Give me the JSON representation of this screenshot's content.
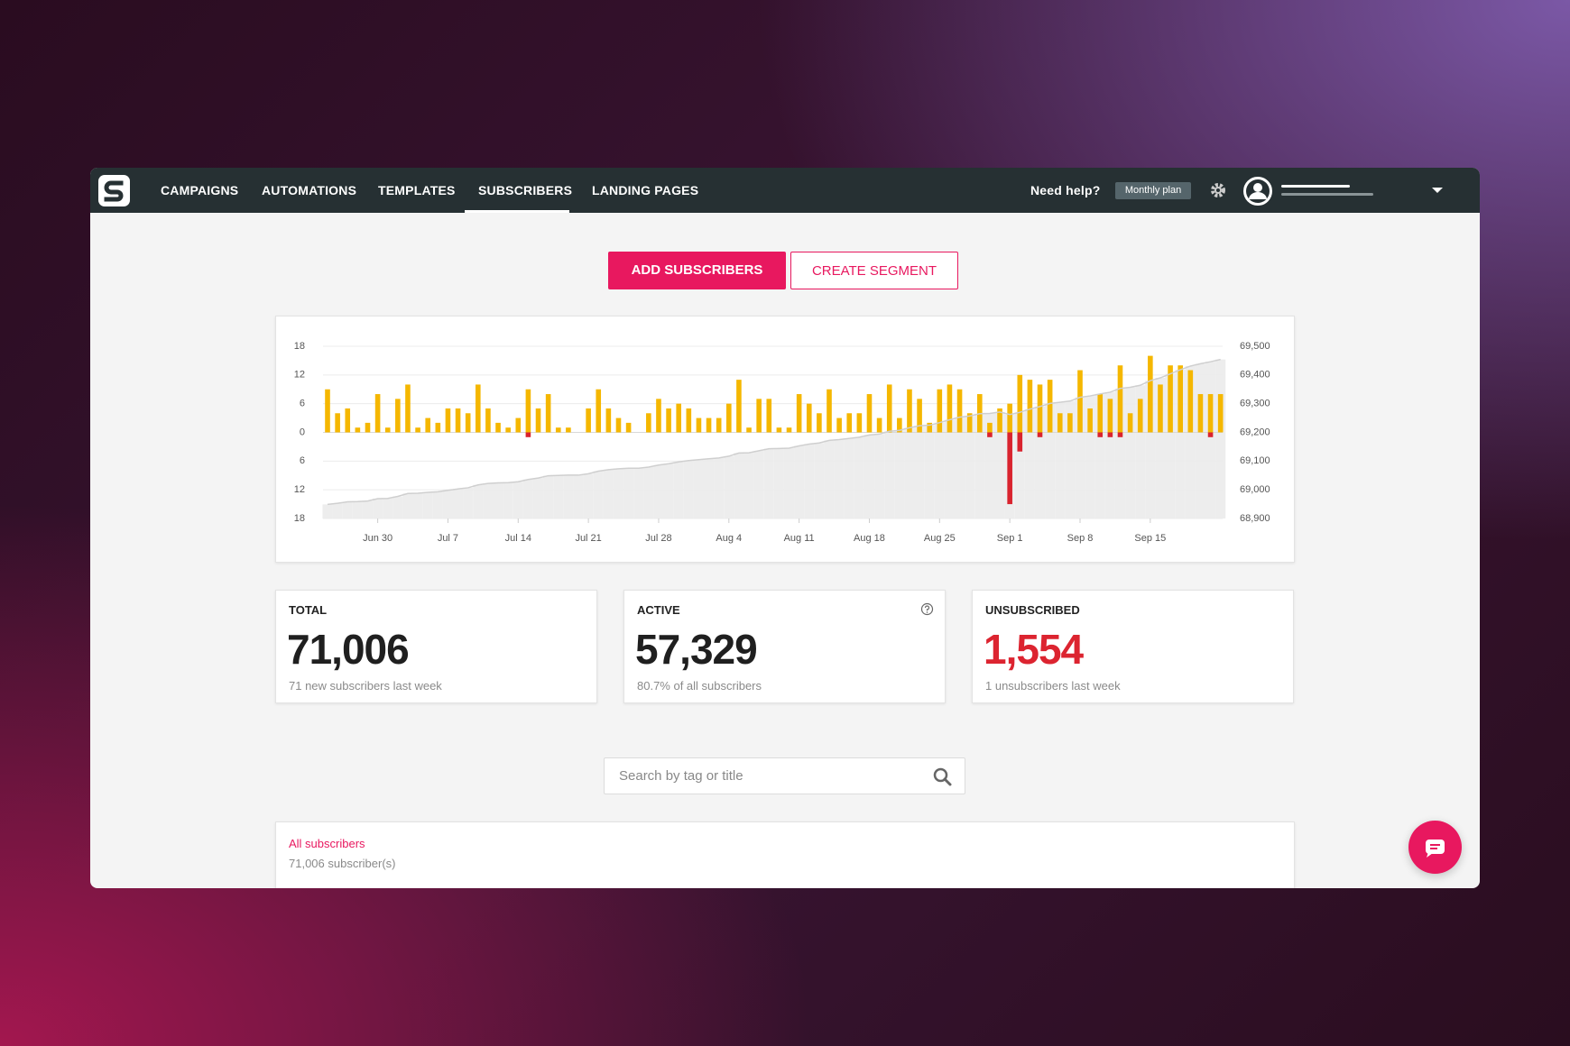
{
  "nav": {
    "items": [
      "CAMPAIGNS",
      "AUTOMATIONS",
      "TEMPLATES",
      "SUBSCRIBERS",
      "LANDING PAGES"
    ],
    "help": "Need help?",
    "plan": "Monthly plan"
  },
  "actions": {
    "add": "ADD SUBSCRIBERS",
    "segment": "CREATE SEGMENT"
  },
  "chart_data": {
    "type": "bar",
    "categories": [
      null,
      null,
      null,
      null,
      null,
      "Jun 30",
      null,
      null,
      null,
      null,
      null,
      null,
      "Jul 7",
      null,
      null,
      null,
      null,
      null,
      null,
      "Jul 14",
      null,
      null,
      null,
      null,
      null,
      null,
      "Jul 21",
      null,
      null,
      null,
      null,
      null,
      null,
      "Jul 28",
      null,
      null,
      null,
      null,
      null,
      null,
      "Aug 4",
      null,
      null,
      null,
      null,
      null,
      null,
      "Aug 11",
      null,
      null,
      null,
      null,
      null,
      null,
      "Aug 18",
      null,
      null,
      null,
      null,
      null,
      null,
      "Aug 25",
      null,
      null,
      null,
      null,
      null,
      null,
      "Sep 1",
      null,
      null,
      null,
      null,
      null,
      null,
      "Sep 8",
      null,
      null,
      null,
      null,
      null,
      null,
      "Sep 15",
      null,
      null,
      null,
      null,
      null,
      null,
      null
    ],
    "series": [
      {
        "color": "#f5b700",
        "values": [
          9,
          4,
          5,
          1,
          2,
          8,
          1,
          7,
          10,
          1,
          3,
          2,
          5,
          5,
          4,
          10,
          5,
          2,
          1,
          3,
          9,
          5,
          8,
          1,
          1,
          0,
          5,
          9,
          5,
          3,
          2,
          0,
          4,
          7,
          5,
          6,
          5,
          3,
          3,
          3,
          6,
          11,
          1,
          7,
          7,
          1,
          1,
          8,
          6,
          4,
          9,
          3,
          4,
          4,
          8,
          3,
          10,
          3,
          9,
          7,
          2,
          9,
          10,
          9,
          4,
          8,
          2,
          5,
          6,
          12,
          11,
          10,
          11,
          4,
          4,
          13,
          5,
          8,
          7,
          14,
          4,
          7,
          16,
          10,
          14,
          14,
          13,
          8,
          8,
          8
        ]
      },
      {
        "color": "#d9232e",
        "values": [
          0,
          0,
          0,
          0,
          0,
          0,
          0,
          0,
          0,
          0,
          0,
          0,
          0,
          0,
          0,
          0,
          0,
          0,
          0,
          0,
          -1,
          0,
          0,
          0,
          0,
          0,
          0,
          0,
          0,
          0,
          0,
          0,
          0,
          0,
          0,
          0,
          0,
          0,
          0,
          0,
          0,
          0,
          0,
          0,
          0,
          0,
          0,
          0,
          0,
          0,
          0,
          0,
          0,
          0,
          0,
          0,
          0,
          0,
          0,
          0,
          0,
          0,
          0,
          0,
          0,
          0,
          -1,
          0,
          -15,
          -4,
          0,
          -1,
          0,
          0,
          0,
          0,
          0,
          -1,
          -1,
          -1,
          0,
          0,
          0,
          0,
          0,
          0,
          0,
          0,
          -1,
          0
        ]
      },
      {
        "type": "area",
        "axis": "y2",
        "color": "#cfcfcf",
        "values": [
          68949,
          68953,
          68958,
          68959,
          68961,
          68969,
          68970,
          68977,
          68987,
          68988,
          68991,
          68993,
          68998,
          69003,
          69007,
          69017,
          69022,
          69024,
          69025,
          69028,
          69036,
          69041,
          69049,
          69050,
          69051,
          69051,
          69056,
          69065,
          69070,
          69073,
          69075,
          69075,
          69079,
          69086,
          69091,
          69097,
          69102,
          69105,
          69108,
          69111,
          69117,
          69128,
          69129,
          69136,
          69143,
          69144,
          69145,
          69153,
          69159,
          69163,
          69172,
          69175,
          69179,
          69183,
          69191,
          69194,
          69204,
          69207,
          69216,
          69223,
          69225,
          69234,
          69244,
          69253,
          69257,
          69265,
          69266,
          69271,
          69262,
          69270,
          69281,
          69290,
          69301,
          69305,
          69309,
          69322,
          69327,
          69334,
          69340,
          69353,
          69357,
          69364,
          69380,
          69390,
          69404,
          69418,
          69431,
          69439,
          69446,
          69454
        ]
      }
    ],
    "ylim": [
      -18,
      18
    ],
    "yticks": [
      18,
      12,
      6,
      0,
      {
        "value": -6,
        "label": "6"
      },
      {
        "value": -12,
        "label": "12"
      },
      {
        "value": -18,
        "label": "18"
      }
    ],
    "y2lim": [
      68900,
      69500
    ],
    "y2ticks": [
      {
        "value": 69500,
        "label": "69,500"
      },
      {
        "value": 69400,
        "label": "69,400"
      },
      {
        "value": 69300,
        "label": "69,300"
      },
      {
        "value": 69200,
        "label": "69,200"
      },
      {
        "value": 69100,
        "label": "69,100"
      },
      {
        "value": 69000,
        "label": "69,000"
      },
      {
        "value": 68900,
        "label": "68,900"
      }
    ],
    "grid": true
  },
  "stats": [
    {
      "label": "TOTAL",
      "value": "71,006",
      "note": "71 new subscribers last week"
    },
    {
      "label": "ACTIVE",
      "value": "57,329",
      "note": "80.7% of all subscribers"
    },
    {
      "label": "UNSUBSCRIBED",
      "value": "1,554",
      "note": "1 unsubscribers last week"
    }
  ],
  "search": {
    "placeholder": "Search by tag or title"
  },
  "list": {
    "title": "All subscribers",
    "count": "71,006 subscriber(s)"
  }
}
